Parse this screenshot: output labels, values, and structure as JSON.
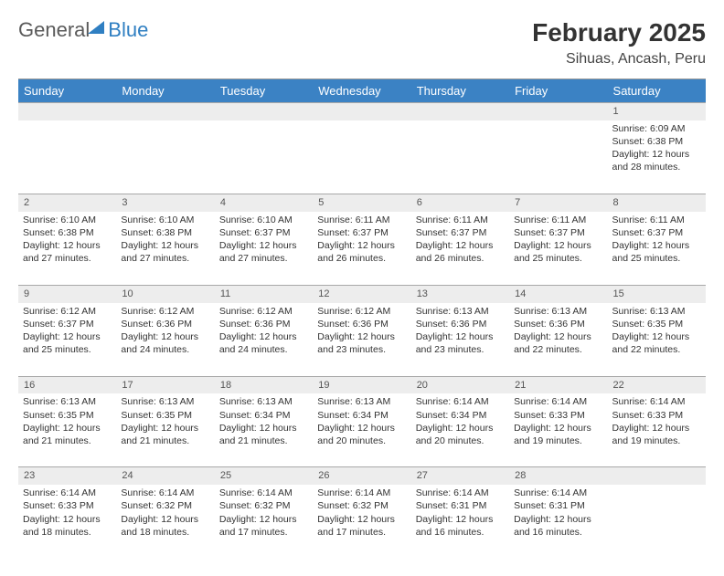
{
  "logo": {
    "general": "General",
    "blue": "Blue"
  },
  "title": "February 2025",
  "location": "Sihuas, Ancash, Peru",
  "colors": {
    "header_bg": "#3b82c4",
    "header_text": "#ffffff",
    "daynum_bg": "#ededed",
    "logo_blue": "#2f7fc2"
  },
  "day_headers": [
    "Sunday",
    "Monday",
    "Tuesday",
    "Wednesday",
    "Thursday",
    "Friday",
    "Saturday"
  ],
  "weeks": [
    {
      "nums": [
        "",
        "",
        "",
        "",
        "",
        "",
        "1"
      ],
      "cells": [
        null,
        null,
        null,
        null,
        null,
        null,
        {
          "sunrise": "6:09 AM",
          "sunset": "6:38 PM",
          "daylight": "12 hours and 28 minutes."
        }
      ]
    },
    {
      "nums": [
        "2",
        "3",
        "4",
        "5",
        "6",
        "7",
        "8"
      ],
      "cells": [
        {
          "sunrise": "6:10 AM",
          "sunset": "6:38 PM",
          "daylight": "12 hours and 27 minutes."
        },
        {
          "sunrise": "6:10 AM",
          "sunset": "6:38 PM",
          "daylight": "12 hours and 27 minutes."
        },
        {
          "sunrise": "6:10 AM",
          "sunset": "6:37 PM",
          "daylight": "12 hours and 27 minutes."
        },
        {
          "sunrise": "6:11 AM",
          "sunset": "6:37 PM",
          "daylight": "12 hours and 26 minutes."
        },
        {
          "sunrise": "6:11 AM",
          "sunset": "6:37 PM",
          "daylight": "12 hours and 26 minutes."
        },
        {
          "sunrise": "6:11 AM",
          "sunset": "6:37 PM",
          "daylight": "12 hours and 25 minutes."
        },
        {
          "sunrise": "6:11 AM",
          "sunset": "6:37 PM",
          "daylight": "12 hours and 25 minutes."
        }
      ]
    },
    {
      "nums": [
        "9",
        "10",
        "11",
        "12",
        "13",
        "14",
        "15"
      ],
      "cells": [
        {
          "sunrise": "6:12 AM",
          "sunset": "6:37 PM",
          "daylight": "12 hours and 25 minutes."
        },
        {
          "sunrise": "6:12 AM",
          "sunset": "6:36 PM",
          "daylight": "12 hours and 24 minutes."
        },
        {
          "sunrise": "6:12 AM",
          "sunset": "6:36 PM",
          "daylight": "12 hours and 24 minutes."
        },
        {
          "sunrise": "6:12 AM",
          "sunset": "6:36 PM",
          "daylight": "12 hours and 23 minutes."
        },
        {
          "sunrise": "6:13 AM",
          "sunset": "6:36 PM",
          "daylight": "12 hours and 23 minutes."
        },
        {
          "sunrise": "6:13 AM",
          "sunset": "6:36 PM",
          "daylight": "12 hours and 22 minutes."
        },
        {
          "sunrise": "6:13 AM",
          "sunset": "6:35 PM",
          "daylight": "12 hours and 22 minutes."
        }
      ]
    },
    {
      "nums": [
        "16",
        "17",
        "18",
        "19",
        "20",
        "21",
        "22"
      ],
      "cells": [
        {
          "sunrise": "6:13 AM",
          "sunset": "6:35 PM",
          "daylight": "12 hours and 21 minutes."
        },
        {
          "sunrise": "6:13 AM",
          "sunset": "6:35 PM",
          "daylight": "12 hours and 21 minutes."
        },
        {
          "sunrise": "6:13 AM",
          "sunset": "6:34 PM",
          "daylight": "12 hours and 21 minutes."
        },
        {
          "sunrise": "6:13 AM",
          "sunset": "6:34 PM",
          "daylight": "12 hours and 20 minutes."
        },
        {
          "sunrise": "6:14 AM",
          "sunset": "6:34 PM",
          "daylight": "12 hours and 20 minutes."
        },
        {
          "sunrise": "6:14 AM",
          "sunset": "6:33 PM",
          "daylight": "12 hours and 19 minutes."
        },
        {
          "sunrise": "6:14 AM",
          "sunset": "6:33 PM",
          "daylight": "12 hours and 19 minutes."
        }
      ]
    },
    {
      "nums": [
        "23",
        "24",
        "25",
        "26",
        "27",
        "28",
        ""
      ],
      "cells": [
        {
          "sunrise": "6:14 AM",
          "sunset": "6:33 PM",
          "daylight": "12 hours and 18 minutes."
        },
        {
          "sunrise": "6:14 AM",
          "sunset": "6:32 PM",
          "daylight": "12 hours and 18 minutes."
        },
        {
          "sunrise": "6:14 AM",
          "sunset": "6:32 PM",
          "daylight": "12 hours and 17 minutes."
        },
        {
          "sunrise": "6:14 AM",
          "sunset": "6:32 PM",
          "daylight": "12 hours and 17 minutes."
        },
        {
          "sunrise": "6:14 AM",
          "sunset": "6:31 PM",
          "daylight": "12 hours and 16 minutes."
        },
        {
          "sunrise": "6:14 AM",
          "sunset": "6:31 PM",
          "daylight": "12 hours and 16 minutes."
        },
        null
      ]
    }
  ],
  "labels": {
    "sunrise": "Sunrise: ",
    "sunset": "Sunset: ",
    "daylight": "Daylight: "
  }
}
